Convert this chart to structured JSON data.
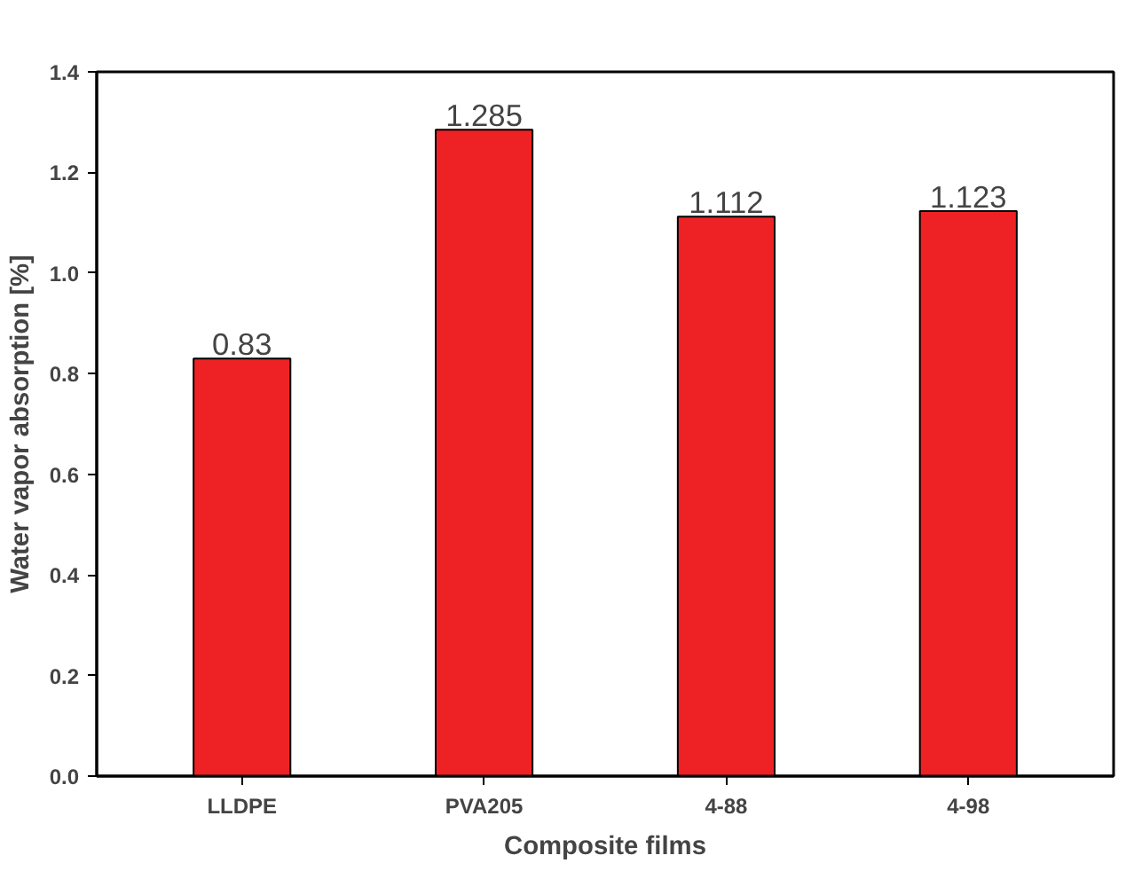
{
  "chart_data": {
    "type": "bar",
    "xlabel": "Composite films",
    "ylabel": "Water vapor absorption [%]",
    "categories": [
      "LLDPE",
      "PVA205",
      "4-88",
      "4-98"
    ],
    "values": [
      0.83,
      1.285,
      1.112,
      1.123
    ],
    "color": "#ee2224",
    "ylim": [
      0,
      1.4
    ],
    "yticks": [
      {
        "value": 0,
        "label": "0.0"
      },
      {
        "value": 0.2,
        "label": "0.2"
      },
      {
        "value": 0.4,
        "label": "0.4"
      },
      {
        "value": 0.6,
        "label": "0.6"
      },
      {
        "value": 0.8,
        "label": "0.8"
      },
      {
        "value": 1.0,
        "label": "1.0"
      },
      {
        "value": 1.2,
        "label": "1.2"
      },
      {
        "value": 1.4,
        "label": "1.4"
      }
    ],
    "data_labels": true,
    "grid": false
  }
}
